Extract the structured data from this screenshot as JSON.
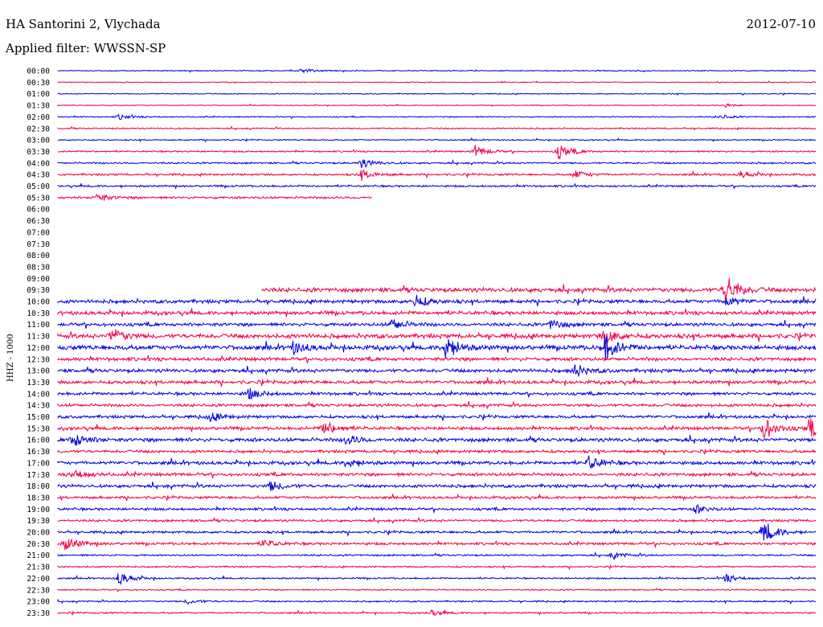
{
  "header": {
    "station": "HA Santorini 2, Vlychada",
    "date": "2012-07-10",
    "filter": "Applied filter: WWSSN-SP"
  },
  "channel_label": "HHZ - 1000",
  "colors": {
    "even": "#0000e0",
    "odd": "#f0004a"
  },
  "chart_data": {
    "type": "line",
    "title": "HA Santorini 2, Vlychada",
    "subtitle": "Applied filter: WWSSN-SP",
    "date": "2012-07-10",
    "ylabel": "HHZ - 1000",
    "xlabel": "",
    "grid": false,
    "row_labels": [
      "00:00",
      "00:30",
      "01:00",
      "01:30",
      "02:00",
      "02:30",
      "03:00",
      "03:30",
      "04:00",
      "04:30",
      "05:00",
      "05:30",
      "06:00",
      "06:30",
      "07:00",
      "07:30",
      "08:00",
      "08:30",
      "09:00",
      "09:30",
      "10:00",
      "10:30",
      "11:00",
      "11:30",
      "12:00",
      "12:30",
      "13:00",
      "13:30",
      "14:00",
      "14:30",
      "15:00",
      "15:30",
      "16:00",
      "16:30",
      "17:00",
      "17:30",
      "18:00",
      "18:30",
      "19:00",
      "19:30",
      "20:00",
      "20:30",
      "21:00",
      "21:30",
      "22:00",
      "22:30",
      "23:00",
      "23:30"
    ],
    "row_minutes": 30,
    "coverage": [
      [
        0,
        1
      ],
      [
        0,
        1
      ],
      [
        0,
        1
      ],
      [
        0,
        1
      ],
      [
        0,
        1
      ],
      [
        0,
        1
      ],
      [
        0,
        1
      ],
      [
        0,
        1
      ],
      [
        0,
        1
      ],
      [
        0,
        1
      ],
      [
        0,
        1
      ],
      [
        0,
        0.414
      ],
      null,
      null,
      null,
      null,
      null,
      null,
      null,
      [
        0.269,
        1
      ],
      [
        0,
        1
      ],
      [
        0,
        1
      ],
      [
        0,
        1
      ],
      [
        0,
        1
      ],
      [
        0,
        1
      ],
      [
        0,
        1
      ],
      [
        0,
        1
      ],
      [
        0,
        1
      ],
      [
        0,
        1
      ],
      [
        0,
        1
      ],
      [
        0,
        1
      ],
      [
        0,
        1
      ],
      [
        0,
        1
      ],
      [
        0,
        1
      ],
      [
        0,
        1
      ],
      [
        0,
        1
      ],
      [
        0,
        1
      ],
      [
        0,
        1
      ],
      [
        0,
        1
      ],
      [
        0,
        1
      ],
      [
        0,
        1
      ],
      [
        0,
        1
      ],
      [
        0,
        1
      ],
      [
        0,
        1
      ],
      [
        0,
        1
      ],
      [
        0,
        1
      ],
      [
        0,
        1
      ],
      [
        0,
        1
      ]
    ],
    "noise": [
      0.5,
      0.4,
      0.5,
      0.4,
      0.6,
      0.7,
      0.6,
      0.8,
      0.9,
      1.0,
      1.0,
      1.2,
      0,
      0,
      0,
      0,
      0,
      0,
      0,
      2.2,
      1.8,
      1.9,
      1.7,
      2.2,
      2.3,
      1.8,
      1.8,
      1.7,
      1.5,
      1.5,
      1.5,
      1.6,
      1.9,
      1.4,
      1.7,
      1.6,
      1.6,
      1.3,
      1.3,
      1.2,
      1.2,
      1.3,
      0.9,
      0.8,
      0.8,
      0.7,
      0.8,
      0.8
    ],
    "events": [
      {
        "row": 0,
        "t": 0.32,
        "a": 3
      },
      {
        "row": 3,
        "t": 0.88,
        "a": 2
      },
      {
        "row": 4,
        "t": 0.08,
        "a": 3
      },
      {
        "row": 4,
        "t": 0.87,
        "a": 3
      },
      {
        "row": 7,
        "t": 0.55,
        "a": 7
      },
      {
        "row": 7,
        "t": 0.66,
        "a": 9
      },
      {
        "row": 8,
        "t": 0.4,
        "a": 6
      },
      {
        "row": 9,
        "t": 0.4,
        "a": 6
      },
      {
        "row": 9,
        "t": 0.68,
        "a": 5
      },
      {
        "row": 9,
        "t": 0.9,
        "a": 4
      },
      {
        "row": 11,
        "t": 0.05,
        "a": 5
      },
      {
        "row": 19,
        "t": 0.88,
        "a": 18
      },
      {
        "row": 20,
        "t": 0.47,
        "a": 8
      },
      {
        "row": 20,
        "t": 0.88,
        "a": 6
      },
      {
        "row": 22,
        "t": 0.44,
        "a": 7
      },
      {
        "row": 22,
        "t": 0.65,
        "a": 6
      },
      {
        "row": 23,
        "t": 0.07,
        "a": 9
      },
      {
        "row": 23,
        "t": 0.72,
        "a": 9
      },
      {
        "row": 24,
        "t": 0.51,
        "a": 16
      },
      {
        "row": 24,
        "t": 0.72,
        "a": 16
      },
      {
        "row": 24,
        "t": 0.31,
        "a": 7
      },
      {
        "row": 26,
        "t": 0.68,
        "a": 7
      },
      {
        "row": 28,
        "t": 0.25,
        "a": 7
      },
      {
        "row": 30,
        "t": 0.2,
        "a": 5
      },
      {
        "row": 31,
        "t": 0.35,
        "a": 9
      },
      {
        "row": 31,
        "t": 0.93,
        "a": 13
      },
      {
        "row": 31,
        "t": 0.99,
        "a": 12
      },
      {
        "row": 32,
        "t": 0.02,
        "a": 9
      },
      {
        "row": 32,
        "t": 0.38,
        "a": 6
      },
      {
        "row": 34,
        "t": 0.38,
        "a": 6
      },
      {
        "row": 34,
        "t": 0.7,
        "a": 9
      },
      {
        "row": 35,
        "t": 0.02,
        "a": 6
      },
      {
        "row": 36,
        "t": 0.28,
        "a": 6
      },
      {
        "row": 38,
        "t": 0.84,
        "a": 5
      },
      {
        "row": 40,
        "t": 0.93,
        "a": 14
      },
      {
        "row": 41,
        "t": 0.01,
        "a": 9
      },
      {
        "row": 41,
        "t": 0.27,
        "a": 5
      },
      {
        "row": 42,
        "t": 0.73,
        "a": 4
      },
      {
        "row": 44,
        "t": 0.08,
        "a": 8
      },
      {
        "row": 44,
        "t": 0.88,
        "a": 5
      },
      {
        "row": 46,
        "t": 0.17,
        "a": 3
      },
      {
        "row": 47,
        "t": 0.49,
        "a": 4
      }
    ]
  }
}
